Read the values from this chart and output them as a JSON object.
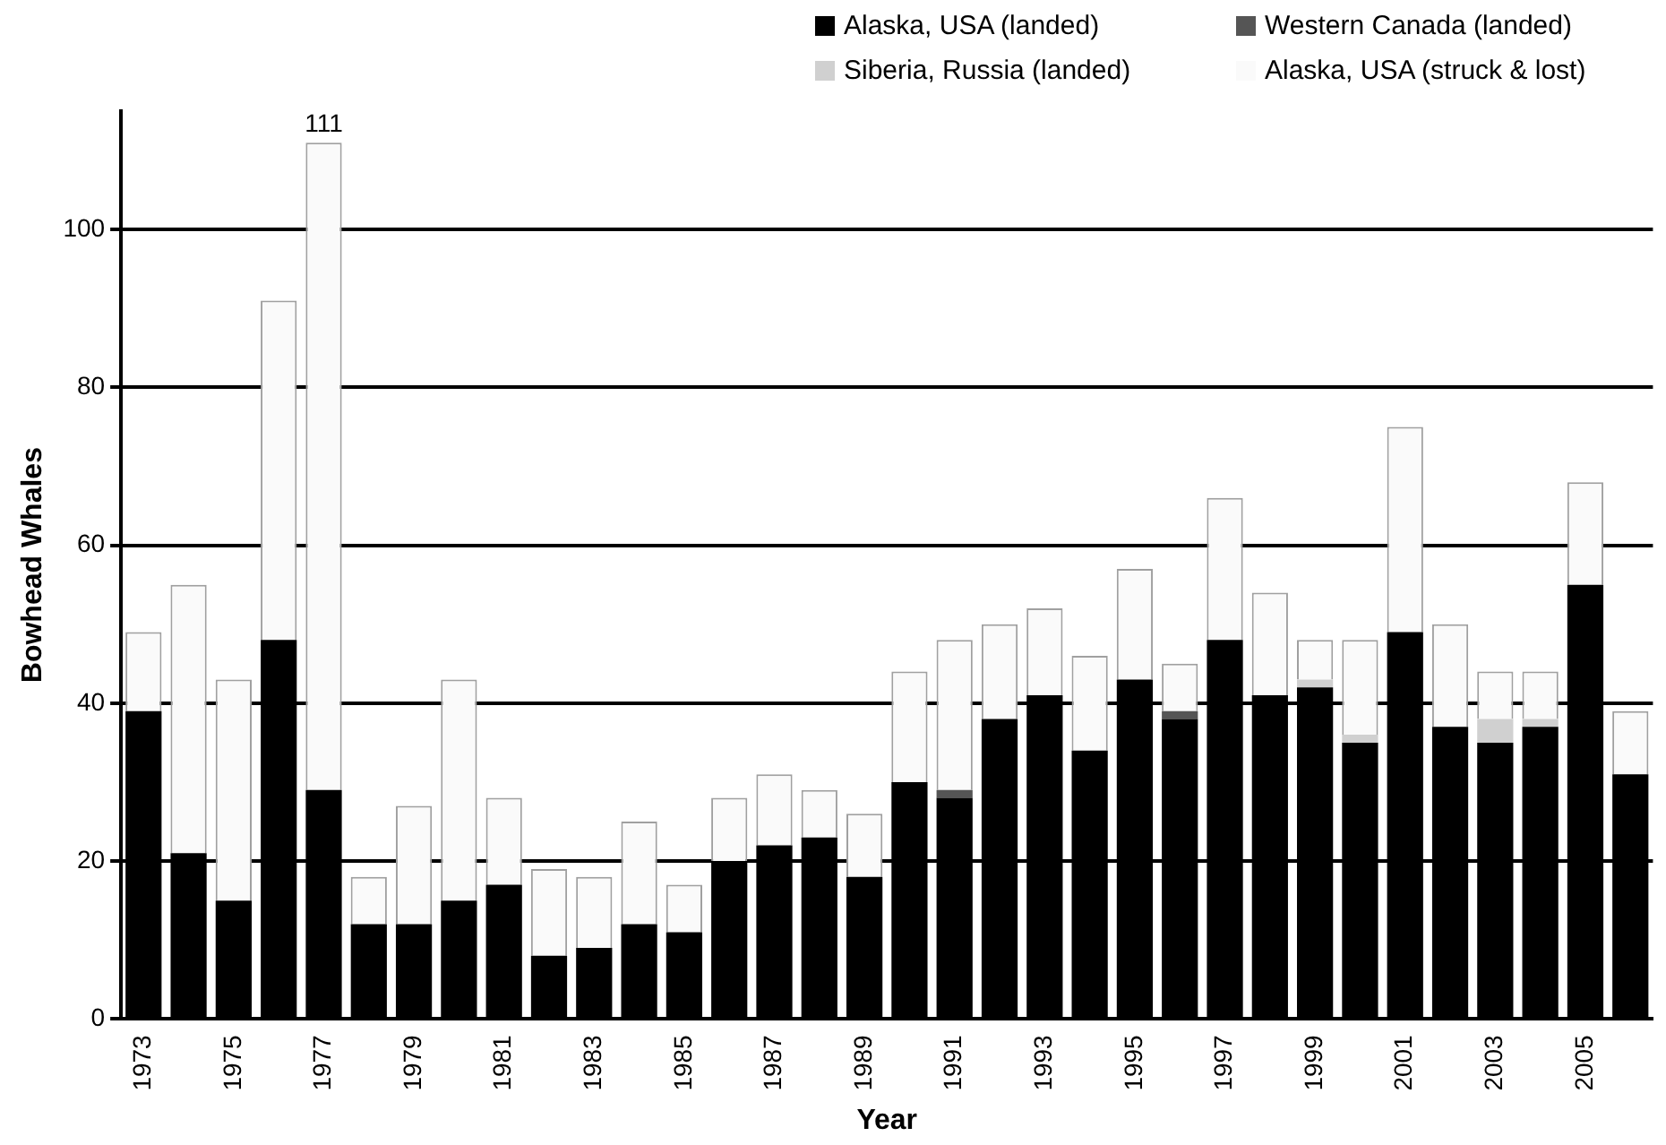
{
  "chart_data": {
    "type": "bar",
    "stacked": true,
    "xlabel": "Year",
    "ylabel": "Bowhead Whales",
    "categories": [
      "1973",
      null,
      "1975",
      null,
      "1977",
      null,
      "1979",
      null,
      "1981",
      null,
      "1983",
      null,
      "1985",
      null,
      "1987",
      null,
      "1989",
      null,
      "1991",
      null,
      "1993",
      null,
      "1995",
      null,
      "1997",
      null,
      "1999",
      null,
      "2001",
      null,
      "2003",
      null,
      "2005",
      null
    ],
    "series": [
      {
        "name": "Alaska, USA (landed)",
        "color": "#000000",
        "values": [
          39,
          21,
          15,
          48,
          29,
          12,
          12,
          15,
          17,
          8,
          9,
          12,
          11,
          20,
          22,
          23,
          18,
          30,
          28,
          38,
          41,
          34,
          43,
          38,
          48,
          41,
          42,
          35,
          49,
          37,
          35,
          37,
          55,
          31
        ]
      },
      {
        "name": "Western Canada (landed)",
        "color": "#555555",
        "values": [
          0,
          0,
          0,
          0,
          0,
          0,
          0,
          0,
          0,
          0,
          0,
          0,
          0,
          0,
          0,
          0,
          0,
          0,
          1,
          0,
          0,
          0,
          0,
          1,
          0,
          0,
          0,
          0,
          0,
          0,
          0,
          0,
          0,
          0
        ]
      },
      {
        "name": "Siberia, Russia (landed)",
        "color": "#d0d0d0",
        "values": [
          0,
          0,
          0,
          0,
          0,
          0,
          0,
          0,
          0,
          0,
          0,
          0,
          0,
          0,
          0,
          0,
          0,
          0,
          0,
          0,
          0,
          0,
          0,
          0,
          0,
          0,
          1,
          1,
          0,
          0,
          3,
          1,
          0,
          0
        ]
      },
      {
        "name": "Alaska, USA (struck & lost)",
        "color": "#fafafa",
        "values": [
          10,
          34,
          28,
          43,
          82,
          6,
          15,
          28,
          11,
          11,
          9,
          13,
          6,
          8,
          9,
          6,
          8,
          14,
          19,
          12,
          11,
          12,
          14,
          6,
          18,
          13,
          5,
          12,
          26,
          13,
          6,
          6,
          13,
          8
        ]
      }
    ],
    "totals": [
      null,
      null,
      null,
      null,
      "111",
      null,
      null,
      null,
      null,
      null,
      null,
      null,
      null,
      null,
      null,
      null,
      null,
      null,
      null,
      null,
      null,
      null,
      null,
      null,
      null,
      null,
      null,
      null,
      null,
      null,
      null,
      null,
      null,
      null
    ],
    "ylim": [
      0,
      115
    ],
    "yticks": [
      0,
      20,
      40,
      60,
      80,
      100
    ],
    "grid": "y",
    "legend": "top"
  }
}
